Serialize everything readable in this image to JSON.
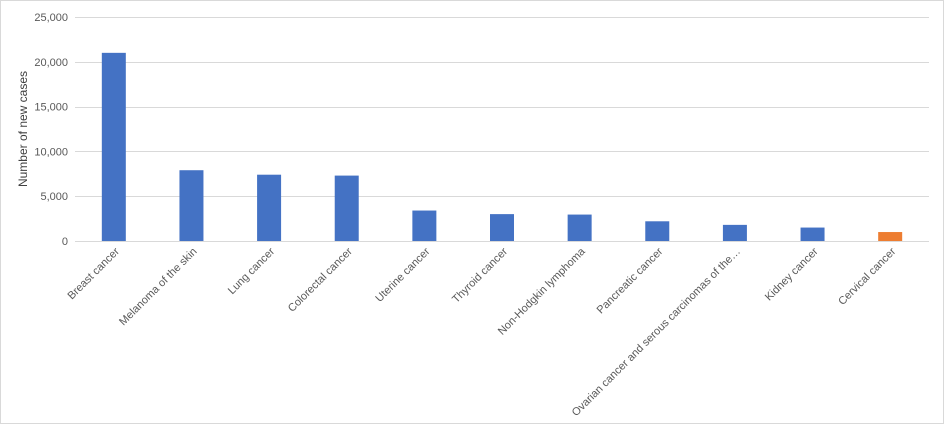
{
  "chart_data": {
    "type": "bar",
    "title": "",
    "xlabel": "",
    "ylabel": "Number of new cases",
    "ylim": [
      0,
      25000
    ],
    "yticks": [
      0,
      5000,
      10000,
      15000,
      20000,
      25000
    ],
    "ytick_labels": [
      "0",
      "5,000",
      "10,000",
      "15,000",
      "20,000",
      "25,000"
    ],
    "grid": true,
    "legend": "none",
    "categories": [
      "Breast cancer",
      "Melanoma of the skin",
      "Lung cancer",
      "Colorectal cancer",
      "Uterine cancer",
      "Thyroid cancer",
      "Non-Hodgkin lymphoma",
      "Pancreatic cancer",
      "Ovarian cancer and serous carcinomas of the…",
      "Kidney cancer",
      "Cervical cancer"
    ],
    "values": [
      21000,
      7900,
      7400,
      7300,
      3400,
      3000,
      2950,
      2200,
      1800,
      1500,
      1000
    ],
    "bar_colors": [
      "#4472C4",
      "#4472C4",
      "#4472C4",
      "#4472C4",
      "#4472C4",
      "#4472C4",
      "#4472C4",
      "#4472C4",
      "#4472C4",
      "#4472C4",
      "#ED7D31"
    ]
  }
}
